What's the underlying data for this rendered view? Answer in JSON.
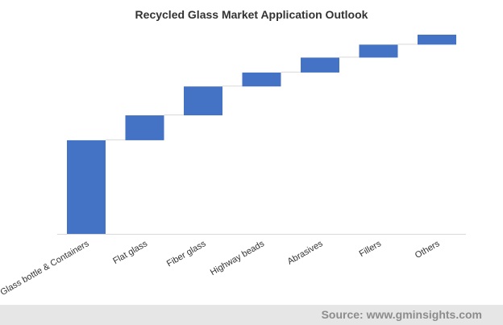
{
  "chart_data": {
    "type": "bar",
    "subtype": "waterfall",
    "title": "Recycled Glass Market Application Outlook",
    "categories": [
      "Glass bottle & Containers",
      "Flat glass",
      "Fiber glass",
      "Highway beads",
      "Abrasives",
      "Fillers",
      "Others"
    ],
    "values": [
      47,
      12.5,
      14.5,
      7,
      7.5,
      6.5,
      5
    ],
    "value_units_note_visible": "",
    "xlabel": "",
    "ylabel": "",
    "ylim": [
      0,
      100
    ],
    "grid": false,
    "legend": "none",
    "bar_color": "#4472c4",
    "connector_color": "#d9d9d9"
  },
  "footer": {
    "source": "Source: www.gminsights.com"
  }
}
